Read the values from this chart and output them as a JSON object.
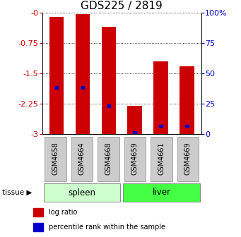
{
  "title": "GDS225 / 2819",
  "samples": [
    "GSM4658",
    "GSM4664",
    "GSM4668",
    "GSM4659",
    "GSM4661",
    "GSM4669"
  ],
  "group_labels": [
    "spleen",
    "liver"
  ],
  "group_colors": [
    "#ccffcc",
    "#44ff44"
  ],
  "log_ratio": [
    -0.1,
    -0.02,
    -0.35,
    -2.3,
    -1.2,
    -1.32
  ],
  "percentile_rank": [
    -1.85,
    -1.85,
    -2.3,
    -2.97,
    -2.8,
    -2.8
  ],
  "ylim": [
    -3,
    0
  ],
  "yticks": [
    -3,
    -2.25,
    -1.5,
    -0.75,
    0
  ],
  "y2ticks": [
    0,
    25,
    50,
    75,
    100
  ],
  "bar_color": "#cc0000",
  "blue_color": "#0000cc",
  "bar_width": 0.55,
  "label_box_color": "#cccccc",
  "tissue_label": "tissue",
  "legend_log_ratio": "log ratio",
  "legend_percentile": "percentile rank within the sample",
  "title_fontsize": 11,
  "tick_fontsize": 8,
  "sample_fontsize": 7
}
